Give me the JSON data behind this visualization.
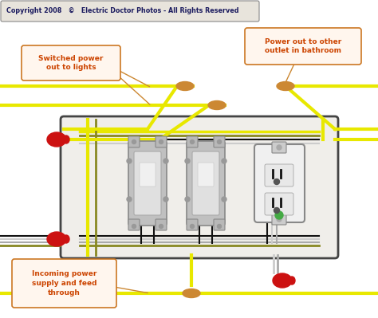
{
  "title": "Copyright 2008   ©   Electric Doctor Photos - All Rights Reserved",
  "title_box_facecolor": "#e8e4dc",
  "title_box_edgecolor": "#888888",
  "title_text_color": "#1a1a5e",
  "bg_color": "#ffffff",
  "box_bg": "#f0eeea",
  "box_edge": "#444444",
  "wire_yellow": "#e8e800",
  "wire_black": "#111111",
  "wire_white": "#cccccc",
  "wire_olive": "#888822",
  "wire_gray": "#aaaaaa",
  "label_fill": "#fff6ee",
  "label_edge": "#cc7722",
  "label_text": "#cc4400",
  "connector_color": "#cc8833",
  "twist_color": "#cc1111",
  "switch_outer": "#b0b0b0",
  "switch_inner": "#d8d8d8",
  "outlet_white": "#f0f0f0",
  "outlet_dark": "#444444",
  "label_switched": "Switched power\nout to lights",
  "label_power_out": "Power out to other\noutlet in bathroom",
  "label_incoming": "Incoming power\nsupply and feed\nthrough"
}
